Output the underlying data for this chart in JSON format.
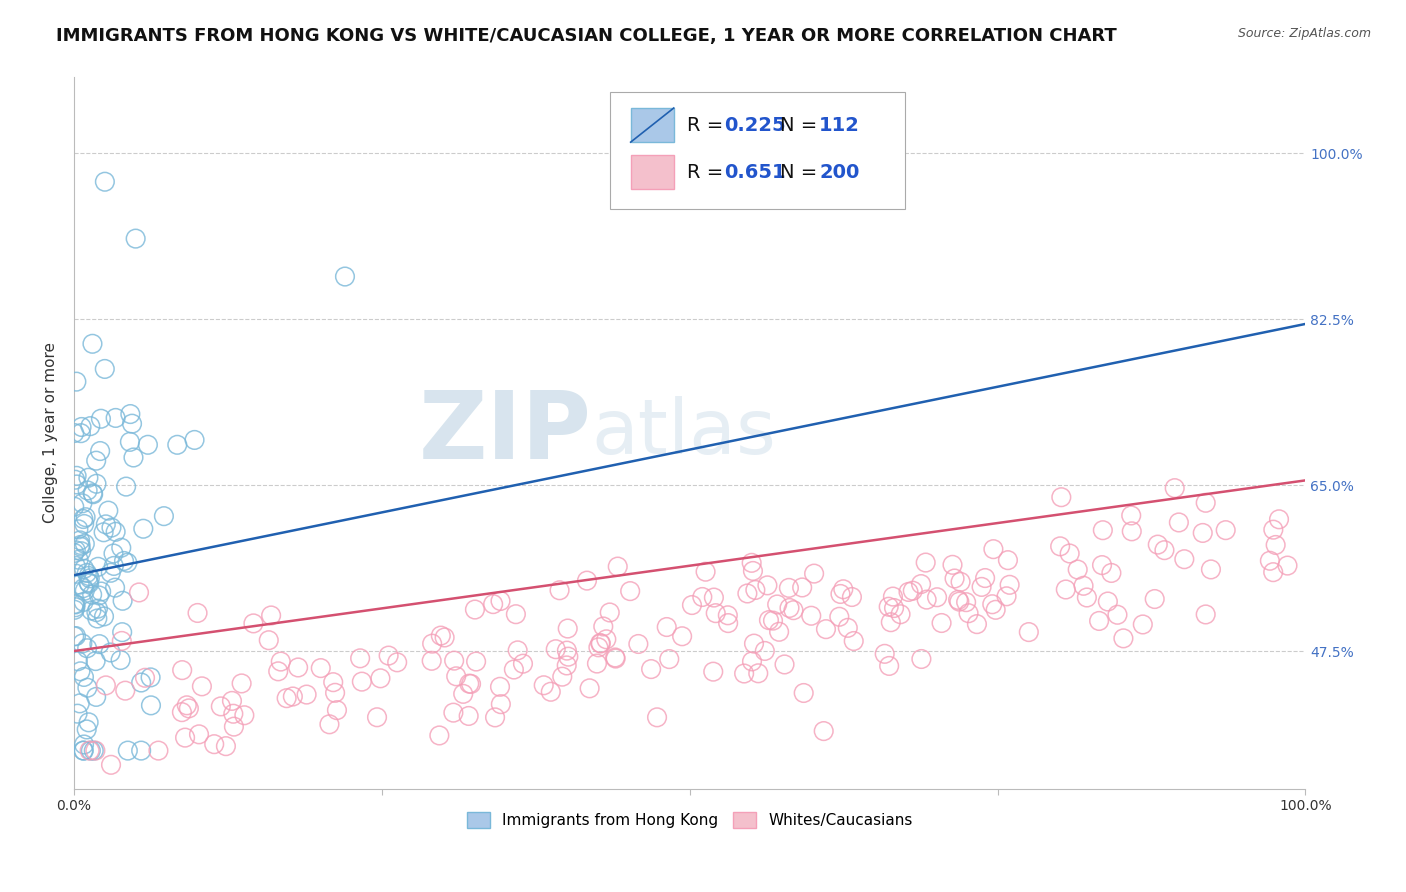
{
  "title": "IMMIGRANTS FROM HONG KONG VS WHITE/CAUCASIAN COLLEGE, 1 YEAR OR MORE CORRELATION CHART",
  "source_text": "Source: ZipAtlas.com",
  "ylabel": "College, 1 year or more",
  "xlim": [
    0,
    1
  ],
  "ylim": [
    0.33,
    1.08
  ],
  "yticks": [
    0.475,
    0.65,
    0.825,
    1.0
  ],
  "ytick_labels": [
    "47.5%",
    "65.0%",
    "82.5%",
    "100.0%"
  ],
  "xticks": [
    0,
    0.25,
    0.5,
    0.75,
    1.0
  ],
  "xtick_labels": [
    "0.0%",
    "",
    "",
    "",
    "100.0%"
  ],
  "legend_r1": "R = 0.225",
  "legend_n1": "N =  112",
  "legend_r2": "R = 0.651",
  "legend_n2": "N = 200",
  "blue_color": "#7ab8d9",
  "pink_color": "#f4a0b8",
  "line_blue": "#2060b0",
  "line_pink": "#d45070",
  "blue_seed": 42,
  "pink_seed": 123,
  "n_blue": 112,
  "n_pink": 200,
  "grid_color": "#cccccc",
  "background_color": "#ffffff",
  "title_fontsize": 13,
  "axis_label_fontsize": 11,
  "tick_fontsize": 10,
  "legend_fontsize": 14
}
